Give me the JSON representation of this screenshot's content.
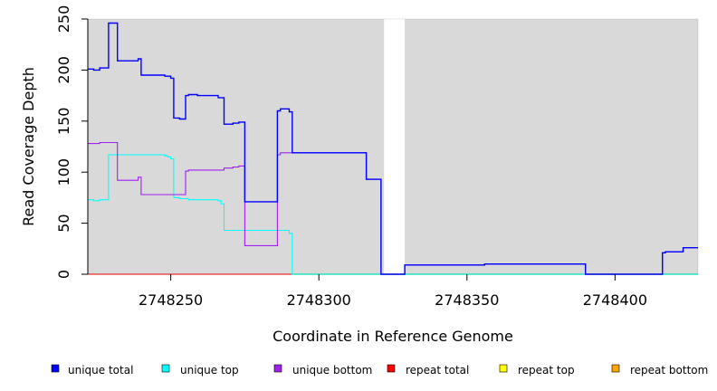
{
  "chart_data": {
    "type": "line",
    "xlabel": "Coordinate in Reference Genome",
    "ylabel": "Read Coverage Depth",
    "xlim": [
      2748222,
      2748428
    ],
    "ylim": [
      0,
      250
    ],
    "x_ticks": [
      2748250,
      2748300,
      2748350,
      2748400
    ],
    "y_ticks": [
      0,
      50,
      100,
      150,
      200,
      250
    ],
    "background_color": "#d9d9d9",
    "gap_color": "#ffffff",
    "gap_range": [
      2748322,
      2748329
    ],
    "step": true,
    "legend_position": "bottom",
    "series": [
      {
        "name": "unique total",
        "color": "#0000ff",
        "points": [
          [
            2748222,
            201
          ],
          [
            2748224,
            200
          ],
          [
            2748226,
            202
          ],
          [
            2748229,
            246
          ],
          [
            2748232,
            209
          ],
          [
            2748239,
            211
          ],
          [
            2748240,
            195
          ],
          [
            2748248,
            194
          ],
          [
            2748250,
            192
          ],
          [
            2748251,
            153
          ],
          [
            2748253,
            152
          ],
          [
            2748255,
            175
          ],
          [
            2748256,
            176
          ],
          [
            2748259,
            175
          ],
          [
            2748266,
            173
          ],
          [
            2748268,
            147
          ],
          [
            2748271,
            148
          ],
          [
            2748273,
            149
          ],
          [
            2748275,
            71
          ],
          [
            2748286,
            160
          ],
          [
            2748287,
            162
          ],
          [
            2748290,
            159
          ],
          [
            2748291,
            119
          ],
          [
            2748316,
            93
          ],
          [
            2748321,
            0
          ],
          [
            2748329,
            9
          ],
          [
            2748356,
            10
          ],
          [
            2748390,
            0
          ],
          [
            2748416,
            21
          ],
          [
            2748417,
            22
          ],
          [
            2748423,
            26
          ],
          [
            2748428,
            26
          ]
        ]
      },
      {
        "name": "unique top",
        "color": "#00ffff",
        "points": [
          [
            2748222,
            73
          ],
          [
            2748224,
            72
          ],
          [
            2748226,
            73
          ],
          [
            2748229,
            117
          ],
          [
            2748248,
            116
          ],
          [
            2748249,
            115
          ],
          [
            2748250,
            113
          ],
          [
            2748251,
            75
          ],
          [
            2748253,
            74
          ],
          [
            2748256,
            73
          ],
          [
            2748266,
            72
          ],
          [
            2748267,
            69
          ],
          [
            2748268,
            43
          ],
          [
            2748290,
            40
          ],
          [
            2748291,
            0
          ],
          [
            2748428,
            0
          ]
        ]
      },
      {
        "name": "unique bottom",
        "color": "#a020f0",
        "points": [
          [
            2748222,
            128
          ],
          [
            2748226,
            129
          ],
          [
            2748232,
            92
          ],
          [
            2748239,
            95
          ],
          [
            2748240,
            78
          ],
          [
            2748255,
            101
          ],
          [
            2748256,
            102
          ],
          [
            2748268,
            104
          ],
          [
            2748271,
            105
          ],
          [
            2748273,
            106
          ],
          [
            2748275,
            28
          ],
          [
            2748286,
            117
          ],
          [
            2748287,
            119
          ],
          [
            2748316,
            93
          ],
          [
            2748321,
            0
          ],
          [
            2748329,
            9
          ],
          [
            2748356,
            10
          ],
          [
            2748390,
            0
          ],
          [
            2748416,
            21
          ],
          [
            2748417,
            22
          ],
          [
            2748423,
            26
          ],
          [
            2748428,
            26
          ]
        ]
      },
      {
        "name": "repeat total",
        "color": "#ff0000",
        "points": [
          [
            2748222,
            0
          ],
          [
            2748291,
            0
          ]
        ]
      },
      {
        "name": "repeat top",
        "color": "#ffff00",
        "points": [
          [
            2748222,
            0
          ],
          [
            2748291,
            0
          ]
        ]
      },
      {
        "name": "repeat bottom",
        "color": "#ffa500",
        "points": [
          [
            2748222,
            0
          ],
          [
            2748291,
            0
          ]
        ]
      }
    ],
    "zero_baseline": {
      "color": "#00cc00",
      "range": [
        2748291,
        2748428
      ]
    }
  }
}
